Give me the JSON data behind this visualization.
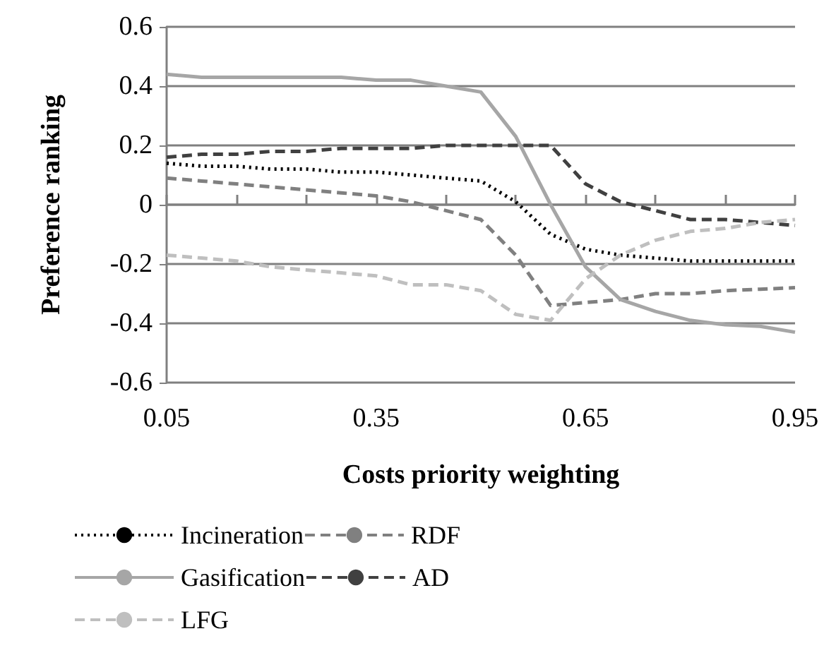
{
  "chart_data": {
    "type": "line",
    "xlabel": "Costs priority weighting",
    "ylabel": "Preference ranking",
    "x": [
      0.05,
      0.1,
      0.15,
      0.2,
      0.25,
      0.3,
      0.35,
      0.4,
      0.45,
      0.5,
      0.55,
      0.6,
      0.65,
      0.7,
      0.75,
      0.8,
      0.85,
      0.9,
      0.95
    ],
    "series": [
      {
        "name": "Incineration",
        "color": "#000000",
        "line_style": "dotted",
        "values": [
          0.14,
          0.13,
          0.13,
          0.12,
          0.12,
          0.11,
          0.11,
          0.1,
          0.09,
          0.08,
          0.01,
          -0.1,
          -0.15,
          -0.17,
          -0.18,
          -0.19,
          -0.19,
          -0.19,
          -0.19
        ]
      },
      {
        "name": "RDF",
        "color": "#808080",
        "line_style": "dashed",
        "values": [
          0.09,
          0.08,
          0.07,
          0.06,
          0.05,
          0.04,
          0.03,
          0.01,
          -0.02,
          -0.05,
          -0.17,
          -0.34,
          -0.33,
          -0.32,
          -0.3,
          -0.3,
          -0.29,
          -0.285,
          -0.28
        ]
      },
      {
        "name": "Gasification",
        "color": "#a6a6a6",
        "line_style": "solid",
        "values": [
          0.44,
          0.43,
          0.43,
          0.43,
          0.43,
          0.43,
          0.42,
          0.42,
          0.4,
          0.38,
          0.23,
          0,
          -0.21,
          -0.32,
          -0.36,
          -0.39,
          -0.405,
          -0.41,
          -0.43
        ]
      },
      {
        "name": "AD",
        "color": "#404040",
        "line_style": "dashed",
        "values": [
          0.16,
          0.17,
          0.17,
          0.18,
          0.18,
          0.19,
          0.19,
          0.19,
          0.2,
          0.2,
          0.2,
          0.2,
          0.07,
          0.01,
          -0.02,
          -0.05,
          -0.05,
          -0.06,
          -0.07
        ]
      },
      {
        "name": "LFG",
        "color": "#bfbfbf",
        "line_style": "dashed",
        "values": [
          -0.17,
          -0.18,
          -0.19,
          -0.21,
          -0.22,
          -0.23,
          -0.24,
          -0.27,
          -0.27,
          -0.29,
          -0.37,
          -0.39,
          -0.25,
          -0.17,
          -0.12,
          -0.09,
          -0.08,
          -0.06,
          -0.05
        ]
      }
    ],
    "xlim": [
      0.05,
      0.95
    ],
    "xticks": [
      0.05,
      {
        "value": 0.15,
        "label": null
      },
      {
        "value": 0.25,
        "label": null
      },
      0.35,
      {
        "value": 0.45,
        "label": null
      },
      {
        "value": 0.55,
        "label": null
      },
      0.65,
      {
        "value": 0.75,
        "label": null
      },
      {
        "value": 0.85,
        "label": null
      },
      0.95
    ],
    "ylim": [
      -0.6,
      0.6
    ],
    "yticks": [
      -0.6,
      -0.4,
      -0.2,
      0,
      0.2,
      0.4,
      0.6
    ],
    "grid": "y",
    "legend": "bottom",
    "marker": "none"
  }
}
